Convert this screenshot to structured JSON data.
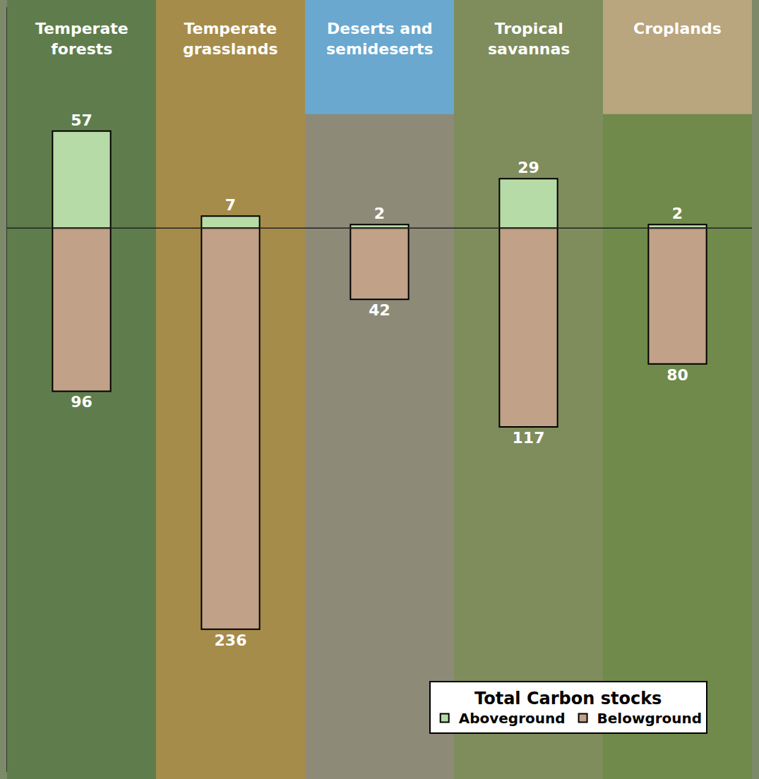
{
  "chart_data": {
    "type": "bar",
    "categories": [
      "Temperate forests",
      "Temperate grasslands",
      "Deserts and semideserts",
      "Tropical savannas",
      "Croplands"
    ],
    "series": [
      {
        "name": "Aboveground",
        "color": "#b7dba7",
        "values": [
          57,
          7,
          2,
          29,
          2
        ]
      },
      {
        "name": "Belowground",
        "color": "#c1a187",
        "values": [
          96,
          236,
          42,
          117,
          80
        ],
        "axis": "y2"
      }
    ],
    "ylim": [
      0,
      130
    ],
    "y2lim": [
      0,
      320
    ],
    "data_labels": true,
    "tick_labels": false,
    "grid": false,
    "legend": "lower right",
    "legend_title": "Total Carbon stocks"
  }
}
